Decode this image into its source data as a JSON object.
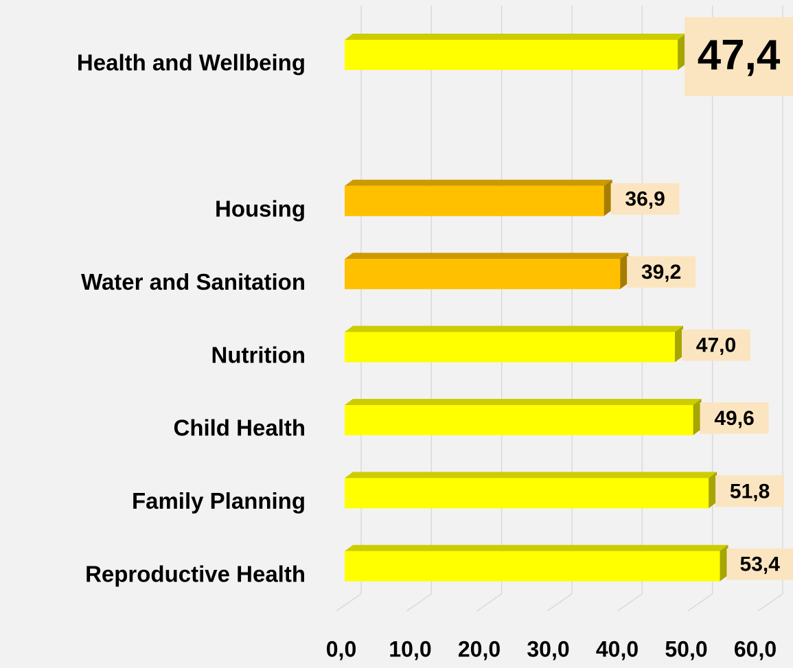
{
  "chart_data": {
    "type": "bar",
    "orientation": "horizontal",
    "categories": [
      "Health and Wellbeing",
      null,
      "Housing",
      "Water and Sanitation",
      "Nutrition",
      "Child Health",
      "Family Planning",
      "Reproductive Health"
    ],
    "values": [
      47.4,
      null,
      36.9,
      39.2,
      47.0,
      49.6,
      51.8,
      53.4
    ],
    "value_labels": [
      "47,4",
      null,
      "36,9",
      "39,2",
      "47,0",
      "49,6",
      "51,8",
      "53,4"
    ],
    "colors": [
      "#ffff00",
      null,
      "#ffc000",
      "#ffc000",
      "#ffff00",
      "#ffff00",
      "#ffff00",
      "#ffff00"
    ],
    "xlim": [
      0,
      60
    ],
    "xticks": [
      {
        "value": 0,
        "label": "0,0"
      },
      {
        "value": 10,
        "label": "10,0"
      },
      {
        "value": 20,
        "label": "20,0"
      },
      {
        "value": 30,
        "label": "30,0"
      },
      {
        "value": 40,
        "label": "40,0"
      },
      {
        "value": 50,
        "label": "50,0"
      },
      {
        "value": 60,
        "label": "60,0"
      }
    ],
    "grid": true
  }
}
